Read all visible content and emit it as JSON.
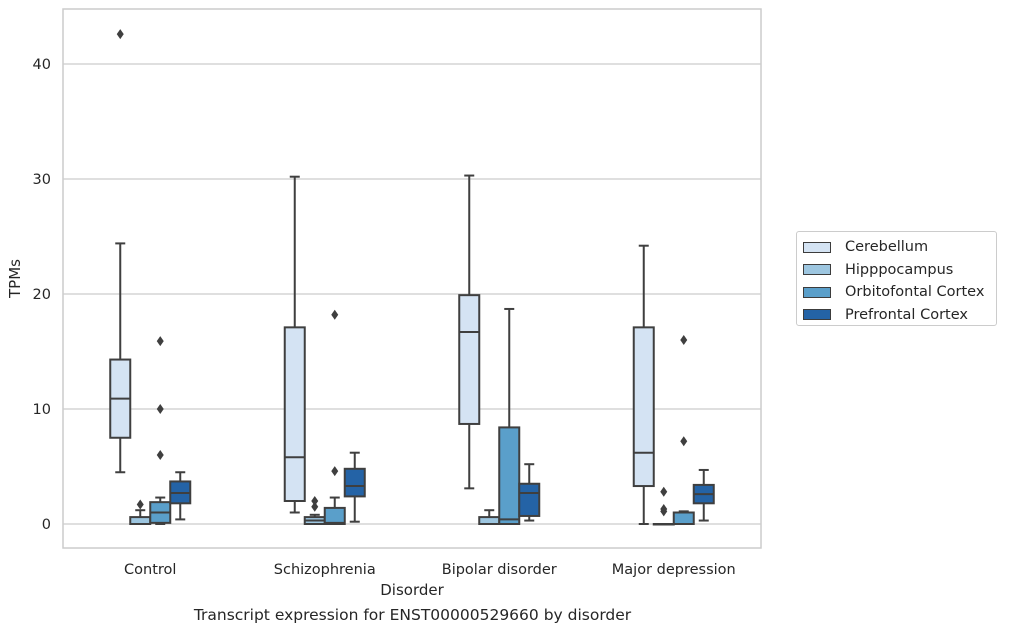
{
  "chart_data": {
    "type": "box",
    "title": "",
    "caption": "Transcript expression for ENST00000529660 by disorder",
    "xlabel": "Disorder",
    "ylabel": "TPMs",
    "ylim": [
      -2,
      45
    ],
    "yticks": [
      0,
      10,
      20,
      30,
      40
    ],
    "grid": true,
    "legend_position": "right",
    "categories": [
      "Control",
      "Schizophrenia",
      "Bipolar disorder",
      "Major depression"
    ],
    "series": [
      {
        "name": "Cerebellum",
        "color": "#d4e3f3",
        "boxes": [
          {
            "whisker_low": 4.5,
            "q1": 7.5,
            "median": 10.9,
            "q3": 14.3,
            "whisker_high": 24.4,
            "outliers": [
              42.6
            ]
          },
          {
            "whisker_low": 1.0,
            "q1": 2.0,
            "median": 5.8,
            "q3": 17.1,
            "whisker_high": 30.2,
            "outliers": []
          },
          {
            "whisker_low": 3.1,
            "q1": 8.7,
            "median": 16.7,
            "q3": 19.9,
            "whisker_high": 30.3,
            "outliers": []
          },
          {
            "whisker_low": 0.0,
            "q1": 3.3,
            "median": 6.2,
            "q3": 17.1,
            "whisker_high": 24.2,
            "outliers": []
          }
        ]
      },
      {
        "name": "Hipppocampus",
        "color": "#9dc6e0",
        "boxes": [
          {
            "whisker_low": 0.0,
            "q1": 0.0,
            "median": 0.0,
            "q3": 0.6,
            "whisker_high": 1.2,
            "outliers": [
              1.7
            ]
          },
          {
            "whisker_low": 0.0,
            "q1": 0.0,
            "median": 0.3,
            "q3": 0.6,
            "whisker_high": 0.8,
            "outliers": [
              1.5,
              2.0
            ]
          },
          {
            "whisker_low": 0.0,
            "q1": 0.0,
            "median": 0.0,
            "q3": 0.6,
            "whisker_high": 1.2,
            "outliers": []
          },
          {
            "whisker_low": 0.0,
            "q1": 0.0,
            "median": 0.0,
            "q3": 0.0,
            "whisker_high": 0.0,
            "outliers": [
              1.1,
              1.3,
              2.8
            ]
          }
        ]
      },
      {
        "name": "Orbitofontal Cortex",
        "color": "#5a9fca",
        "boxes": [
          {
            "whisker_low": 0.0,
            "q1": 0.1,
            "median": 1.0,
            "q3": 1.9,
            "whisker_high": 2.3,
            "outliers": [
              6.0,
              10.0,
              15.9
            ]
          },
          {
            "whisker_low": 0.0,
            "q1": 0.0,
            "median": 0.1,
            "q3": 1.4,
            "whisker_high": 2.3,
            "outliers": [
              4.6,
              18.2
            ]
          },
          {
            "whisker_low": 0.0,
            "q1": 0.0,
            "median": 0.4,
            "q3": 8.4,
            "whisker_high": 18.7,
            "outliers": []
          },
          {
            "whisker_low": 0.0,
            "q1": 0.0,
            "median": 0.0,
            "q3": 1.0,
            "whisker_high": 1.1,
            "outliers": [
              7.2,
              16.0
            ]
          }
        ]
      },
      {
        "name": "Prefrontal Cortex",
        "color": "#2463a6",
        "boxes": [
          {
            "whisker_low": 0.4,
            "q1": 1.8,
            "median": 2.7,
            "q3": 3.7,
            "whisker_high": 4.5,
            "outliers": []
          },
          {
            "whisker_low": 0.2,
            "q1": 2.4,
            "median": 3.3,
            "q3": 4.8,
            "whisker_high": 6.2,
            "outliers": []
          },
          {
            "whisker_low": 0.3,
            "q1": 0.7,
            "median": 2.7,
            "q3": 3.5,
            "whisker_high": 5.2,
            "outliers": []
          },
          {
            "whisker_low": 0.3,
            "q1": 1.8,
            "median": 2.6,
            "q3": 3.4,
            "whisker_high": 4.7,
            "outliers": []
          }
        ]
      }
    ]
  }
}
